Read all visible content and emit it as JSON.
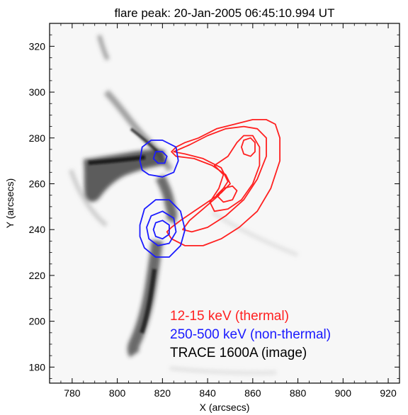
{
  "chart_data": {
    "type": "image-contour",
    "title": "flare peak:  20-Jan-2005 06:45:10.994 UT",
    "xlabel": "X (arcsecs)",
    "ylabel": "Y (arcsecs)",
    "xlim": [
      770,
      925
    ],
    "ylim": [
      173,
      330
    ],
    "xticks": [
      780,
      800,
      820,
      840,
      860,
      880,
      900,
      920
    ],
    "yticks": [
      180,
      200,
      220,
      240,
      260,
      280,
      300,
      320
    ],
    "colors": {
      "thermal": "#ff2020",
      "nonthermal": "#1a1aff",
      "image": "#000000"
    },
    "legend": [
      {
        "text": "12-15 keV (thermal)",
        "color": "#ff2020"
      },
      {
        "text": "250-500 keV (non-thermal)",
        "color": "#1a1aff"
      },
      {
        "text": "TRACE 1600A (image)",
        "color": "#000000"
      }
    ],
    "legend_position": "bottom-right",
    "contours": {
      "thermal": [
        [
          [
            824,
            274
          ],
          [
            826,
            276
          ],
          [
            830,
            278
          ],
          [
            836,
            280
          ],
          [
            844,
            284
          ],
          [
            852,
            286
          ],
          [
            860,
            288
          ],
          [
            866,
            288
          ],
          [
            870,
            286
          ],
          [
            872,
            280
          ],
          [
            872,
            270
          ],
          [
            868,
            258
          ],
          [
            862,
            248
          ],
          [
            854,
            241
          ],
          [
            846,
            236
          ],
          [
            838,
            233
          ],
          [
            830,
            233
          ],
          [
            824,
            236
          ],
          [
            822,
            239
          ],
          [
            824,
            241
          ],
          [
            828,
            244
          ],
          [
            834,
            248
          ],
          [
            840,
            252
          ],
          [
            846,
            256
          ],
          [
            850,
            260
          ],
          [
            848,
            264
          ],
          [
            842,
            268
          ],
          [
            834,
            271
          ],
          [
            826,
            272
          ],
          [
            824,
            274
          ]
        ],
        [
          [
            825,
            274
          ],
          [
            832,
            277
          ],
          [
            840,
            281
          ],
          [
            848,
            284
          ],
          [
            856,
            285
          ],
          [
            862,
            284
          ],
          [
            866,
            280
          ],
          [
            866,
            272
          ],
          [
            862,
            262
          ],
          [
            856,
            253
          ],
          [
            848,
            246
          ],
          [
            840,
            241
          ],
          [
            833,
            239
          ],
          [
            829,
            240
          ],
          [
            832,
            244
          ],
          [
            838,
            249
          ],
          [
            845,
            255
          ],
          [
            849,
            261
          ],
          [
            846,
            267
          ],
          [
            838,
            271
          ],
          [
            830,
            273
          ],
          [
            825,
            274
          ]
        ],
        [
          [
            843,
            268
          ],
          [
            849,
            272
          ],
          [
            853,
            278
          ],
          [
            856,
            281
          ],
          [
            860,
            281
          ],
          [
            863,
            276
          ],
          [
            863,
            268
          ],
          [
            860,
            260
          ],
          [
            855,
            253
          ],
          [
            849,
            249
          ],
          [
            843,
            248
          ],
          [
            841,
            252
          ],
          [
            845,
            258
          ],
          [
            847,
            264
          ],
          [
            843,
            268
          ]
        ],
        [
          [
            855,
            276
          ],
          [
            856,
            279
          ],
          [
            859,
            280
          ],
          [
            861,
            278
          ],
          [
            861,
            274
          ],
          [
            859,
            272
          ],
          [
            856,
            273
          ],
          [
            855,
            276
          ]
        ],
        [
          [
            844,
            255
          ],
          [
            847,
            258
          ],
          [
            851,
            259
          ],
          [
            853,
            257
          ],
          [
            851,
            253
          ],
          [
            847,
            252
          ],
          [
            844,
            255
          ]
        ]
      ],
      "nonthermal": [
        [
          [
            810,
            270
          ],
          [
            811,
            276
          ],
          [
            815,
            279
          ],
          [
            820,
            279
          ],
          [
            826,
            276
          ],
          [
            827,
            270
          ],
          [
            825,
            265
          ],
          [
            820,
            263
          ],
          [
            814,
            264
          ],
          [
            811,
            266
          ],
          [
            810,
            270
          ]
        ],
        [
          [
            816,
            271
          ],
          [
            817,
            274
          ],
          [
            820,
            274
          ],
          [
            822,
            272
          ],
          [
            821,
            269
          ],
          [
            818,
            269
          ],
          [
            816,
            271
          ]
        ],
        [
          [
            810,
            242
          ],
          [
            812,
            249
          ],
          [
            817,
            253
          ],
          [
            823,
            253
          ],
          [
            828,
            248
          ],
          [
            830,
            240
          ],
          [
            828,
            233
          ],
          [
            823,
            228
          ],
          [
            817,
            228
          ],
          [
            812,
            232
          ],
          [
            810,
            237
          ],
          [
            810,
            242
          ]
        ],
        [
          [
            813,
            241
          ],
          [
            815,
            246
          ],
          [
            820,
            248
          ],
          [
            825,
            245
          ],
          [
            826,
            239
          ],
          [
            823,
            234
          ],
          [
            818,
            233
          ],
          [
            814,
            236
          ],
          [
            813,
            241
          ]
        ],
        [
          [
            816,
            240
          ],
          [
            817,
            243
          ],
          [
            820,
            244
          ],
          [
            823,
            242
          ],
          [
            823,
            238
          ],
          [
            820,
            236
          ],
          [
            817,
            237
          ],
          [
            816,
            240
          ]
        ]
      ]
    }
  }
}
